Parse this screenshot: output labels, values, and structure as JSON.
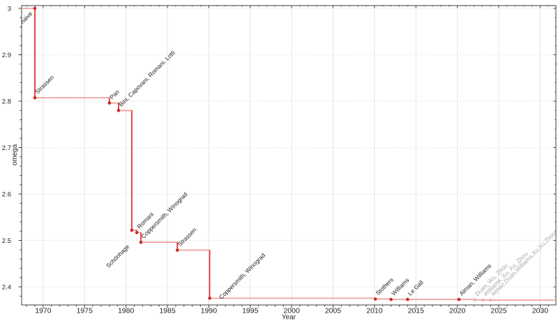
{
  "figure": {
    "background": "#ffffff"
  },
  "chart_data": {
    "type": "line",
    "subtype": "step-post",
    "title": "",
    "xlabel": "Year",
    "ylabel": "omega",
    "x_range": [
      1967.4,
      2031.9
    ],
    "y_range": [
      2.361,
      3.006
    ],
    "x_ticks_major": [
      1970,
      1975,
      1980,
      1985,
      1990,
      1995,
      2000,
      2005,
      2010,
      2015,
      2020,
      2025,
      2030
    ],
    "x_minor_step": 1,
    "y_ticks_major": [
      2.4,
      2.5,
      2.6,
      2.7,
      2.8,
      2.9,
      3
    ],
    "y_minor_step": 0.02,
    "grid": true,
    "legend": "none",
    "colors": {
      "line_soft": "#efa09e",
      "line_strong": "#e03a38",
      "point": "#c62b28",
      "point_muted": "#f3b2b0",
      "label": "#1c1c1c",
      "label_muted": "#a8a8a8",
      "axis": "#3c3c3c",
      "grid_v": "#e4e4e4",
      "grid_h": "#dddddd"
    },
    "points": [
      {
        "year": 1969,
        "omega": 3.0,
        "label": "naive",
        "label_side": "below",
        "label_offset": [
          -3,
          8
        ]
      },
      {
        "year": 1969,
        "omega": 2.8074,
        "label": "Strassen"
      },
      {
        "year": 1978,
        "omega": 2.796,
        "label": "Pan"
      },
      {
        "year": 1979.1,
        "omega": 2.78,
        "label": "Bini, Capovani, Romani, Lotti"
      },
      {
        "year": 1980.7,
        "omega": 2.522,
        "label": "Schönhage",
        "label_side": "below",
        "label_offset": [
          -3,
          24
        ]
      },
      {
        "year": 1981.3,
        "omega": 2.517,
        "label": "Romani"
      },
      {
        "year": 1981.8,
        "omega": 2.496,
        "label": "Coppersmith, Winograd"
      },
      {
        "year": 1986.2,
        "omega": 2.479,
        "label": "Strassen"
      },
      {
        "year": 1990.1,
        "omega": 2.3755,
        "label": "Coppersmith, Winograd",
        "label_offset": [
          17,
          2
        ]
      },
      {
        "year": 2010.1,
        "omega": 2.3737,
        "label": "Stothers"
      },
      {
        "year": 2012,
        "omega": 2.3729,
        "label": "Williams"
      },
      {
        "year": 2014,
        "omega": 2.3728639,
        "label": "Le Gall"
      },
      {
        "year": 2020.2,
        "omega": 2.3728596,
        "label": "Alman, Williams"
      },
      {
        "year": 2022.1,
        "omega": 2.371866,
        "label": "Duan, Wu, Zhou",
        "muted": true
      },
      {
        "year": 2023.1,
        "omega": 2.371552,
        "label": "Williams, Xu, Xu, Zhou",
        "muted": true
      },
      {
        "year": 2024,
        "omega": 2.371339,
        "label": "Alman,Duan,Williams,Xu,Xu,Zhou",
        "muted": true
      }
    ]
  }
}
